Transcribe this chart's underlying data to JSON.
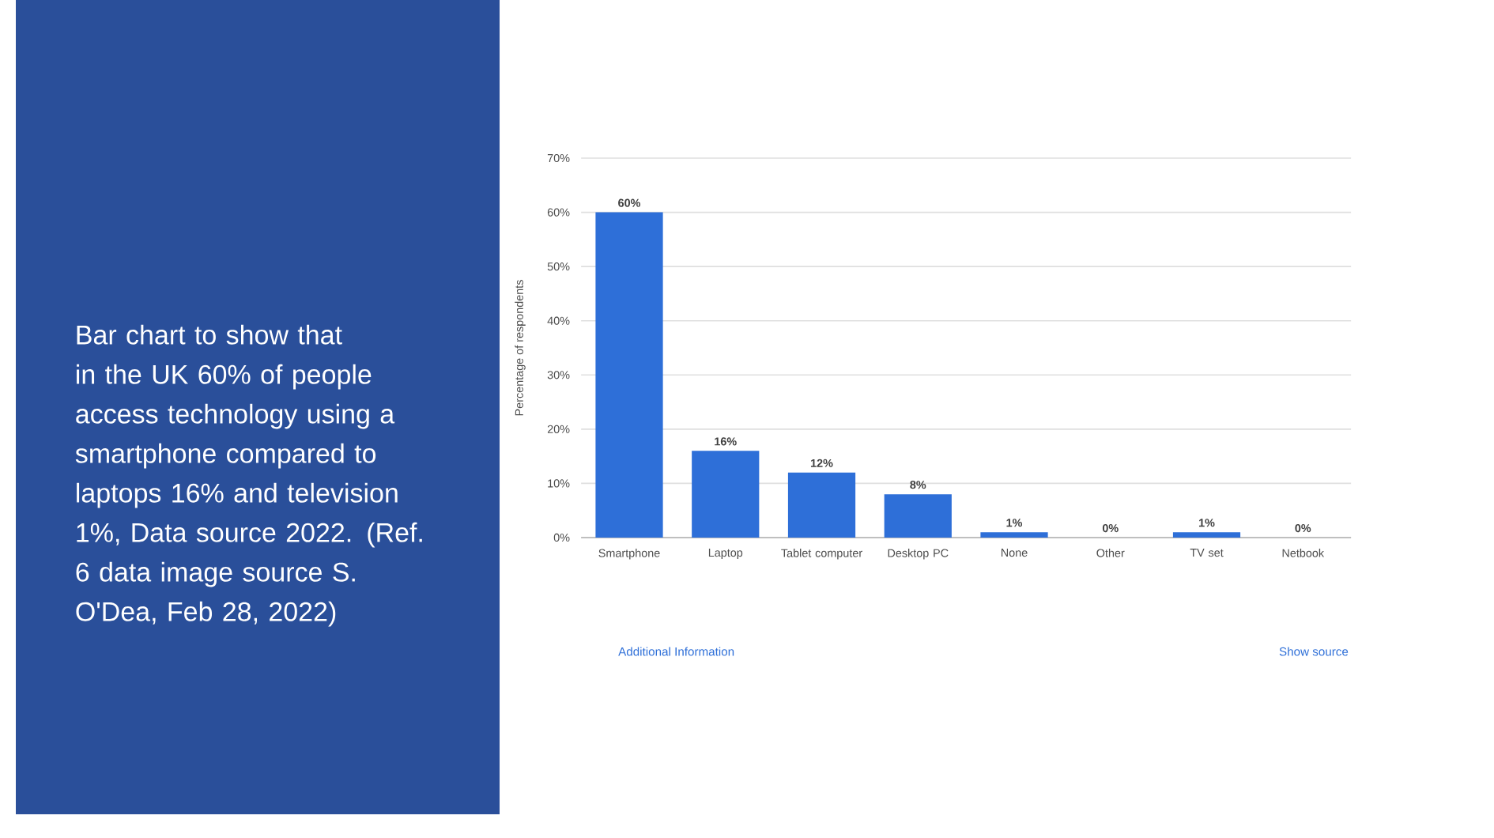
{
  "chart_data": {
    "type": "bar",
    "ylabel": "Percentage of respondents",
    "categories": [
      "Smartphone",
      "Laptop",
      "Tablet computer",
      "Desktop PC",
      "None",
      "Other",
      "TV set",
      "Netbook"
    ],
    "values": [
      60,
      16,
      12,
      8,
      1,
      0,
      1,
      0
    ],
    "value_labels": [
      "60%",
      "16%",
      "12%",
      "8%",
      "1%",
      "0%",
      "1%",
      "0%"
    ],
    "color": "#2e6fd8",
    "ylim": [
      0,
      70
    ],
    "yticks": [
      {
        "value": 0,
        "label": "0%"
      },
      {
        "value": 10,
        "label": "10%"
      },
      {
        "value": 20,
        "label": "20%"
      },
      {
        "value": 30,
        "label": "30%"
      },
      {
        "value": 40,
        "label": "40%"
      },
      {
        "value": 50,
        "label": "50%"
      },
      {
        "value": 60,
        "label": "60%"
      },
      {
        "value": 70,
        "label": "70%"
      }
    ],
    "grid": "y",
    "annotations": [
      "Bar chart to show that in the UK 60% of people access technology using a smartphone compared to laptops 16% and television 1%, Data source 2022. (Ref. 6 data image source S. O'Dea, Feb 28, 2022)",
      "Additional Information",
      "Show source"
    ]
  }
}
